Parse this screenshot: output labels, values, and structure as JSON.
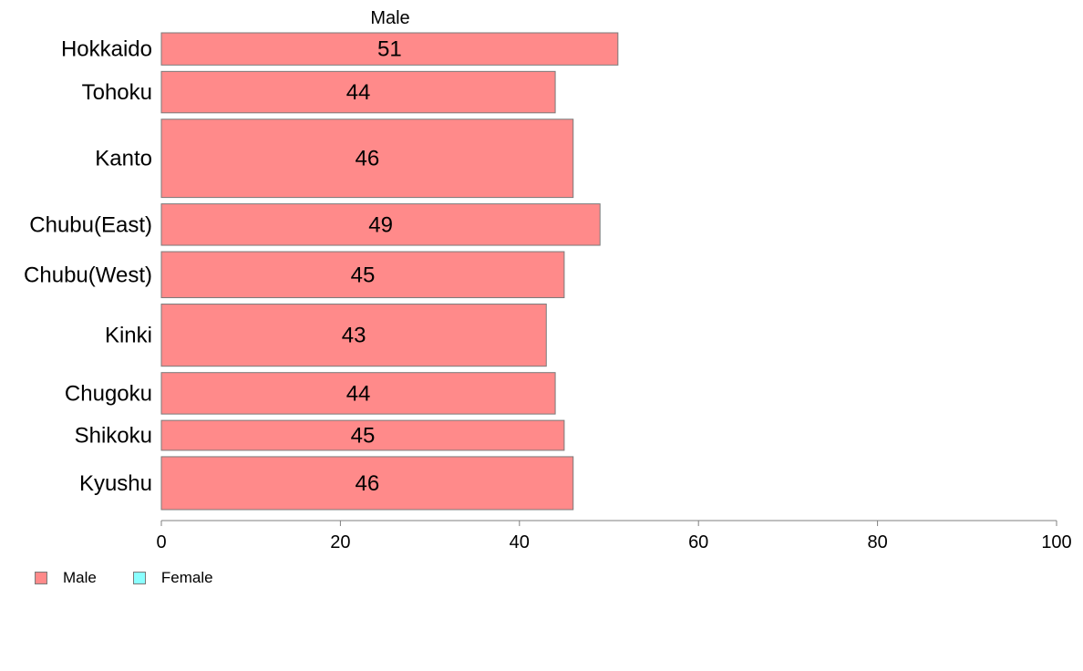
{
  "chart_data": {
    "type": "bar",
    "orientation": "horizontal",
    "title": "Male",
    "categories": [
      "Hokkaido",
      "Tohoku",
      "Kanto",
      "Chubu(East)",
      "Chubu(West)",
      "Kinki",
      "Chugoku",
      "Shikoku",
      "Kyushu"
    ],
    "relative_widths": [
      0.7,
      0.9,
      1.7,
      0.9,
      1.0,
      1.35,
      0.9,
      0.65,
      1.15
    ],
    "series": [
      {
        "name": "Male",
        "values": [
          51,
          44,
          46,
          49,
          45,
          43,
          44,
          45,
          46
        ],
        "color": "#ff8a8a"
      }
    ],
    "data_labels": [
      "51",
      "44",
      "46",
      "49",
      "45",
      "43",
      "44",
      "45",
      "46"
    ],
    "xlim": [
      0,
      100
    ],
    "xticks": [
      0,
      20,
      40,
      60,
      80,
      100
    ],
    "grid": false,
    "legend": {
      "position": "bottom-left",
      "entries": [
        {
          "label": "Male",
          "color": "#ff8a8a"
        },
        {
          "label": "Female",
          "color": "#8affff"
        }
      ]
    }
  }
}
